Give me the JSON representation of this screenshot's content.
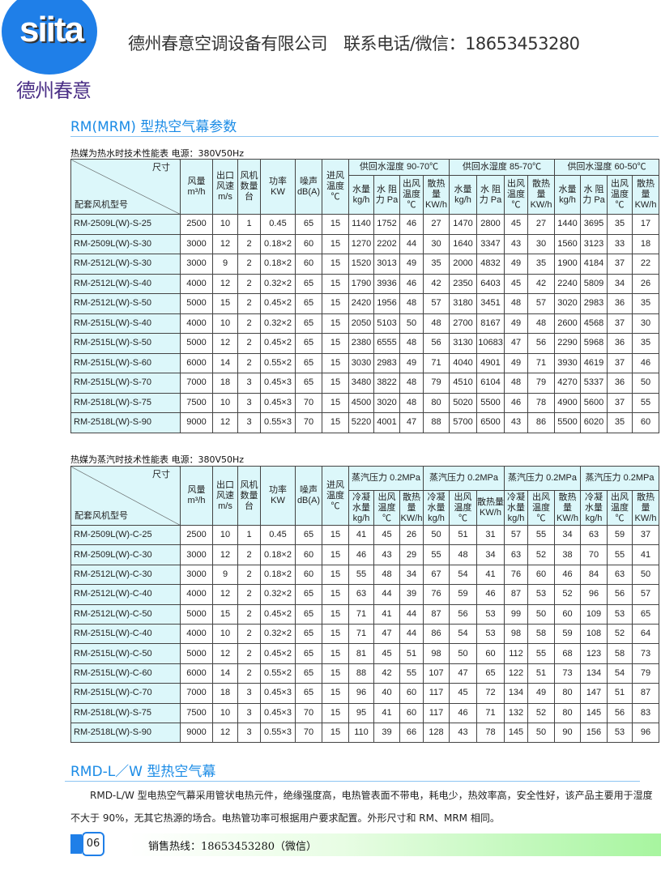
{
  "header": {
    "logo_text": "siita",
    "logo_cn": "德州春意",
    "company": "德州春意空调设备有限公司",
    "contact": "联系电话/微信：18653453280"
  },
  "section1": {
    "title": "RM(MRM) 型热空气幕参数"
  },
  "colors": {
    "accent": "#1a8be6",
    "header_bg": "#dcf7fa",
    "logo_blue": "#1f7fe8",
    "logo_purple": "#4b2f86"
  },
  "table1": {
    "caption": "热媒为热水时技术性能表  电源：380V50Hz",
    "corner_top": "尺寸",
    "corner_bottom": "配套风机型号",
    "fixed_headers": [
      "风量 m³/h",
      "出口 风速 m/s",
      "风机 数量 台",
      "功率 KW",
      "噪声 dB(A)",
      "进风 温度 ℃"
    ],
    "groups": [
      "供回水湿度 90-70℃",
      "供回水湿度 85-70℃",
      "供回水湿度 60-50℃"
    ],
    "sub_headers": [
      "水量 kg/h",
      "水 阻力 Pa",
      "出风 温度 ℃",
      "散热 量 KW/h"
    ],
    "rows": [
      [
        "RM-2509L(W)-S-25",
        "2500",
        "10",
        "1",
        "0.45",
        "65",
        "15",
        "1140",
        "1752",
        "46",
        "27",
        "1470",
        "2800",
        "45",
        "27",
        "1440",
        "3695",
        "35",
        "17"
      ],
      [
        "RM-2509L(W)-S-30",
        "3000",
        "12",
        "2",
        "0.18×2",
        "60",
        "15",
        "1270",
        "2202",
        "44",
        "30",
        "1640",
        "3347",
        "43",
        "30",
        "1560",
        "3123",
        "33",
        "18"
      ],
      [
        "RM-2512L(W)-S-30",
        "3000",
        "9",
        "2",
        "0.18×2",
        "60",
        "15",
        "1520",
        "3013",
        "49",
        "35",
        "2000",
        "4832",
        "49",
        "35",
        "1900",
        "4184",
        "37",
        "22"
      ],
      [
        "RM-2512L(W)-S-40",
        "4000",
        "12",
        "2",
        "0.32×2",
        "65",
        "15",
        "1790",
        "3936",
        "46",
        "42",
        "2350",
        "6403",
        "45",
        "42",
        "2240",
        "5809",
        "34",
        "26"
      ],
      [
        "RM-2512L(W)-S-50",
        "5000",
        "15",
        "2",
        "0.45×2",
        "65",
        "15",
        "2420",
        "1956",
        "48",
        "57",
        "3180",
        "3451",
        "48",
        "57",
        "3020",
        "2983",
        "36",
        "35"
      ],
      [
        "RM-2515L(W)-S-40",
        "4000",
        "10",
        "2",
        "0.32×2",
        "65",
        "15",
        "2050",
        "5103",
        "50",
        "48",
        "2700",
        "8167",
        "49",
        "48",
        "2600",
        "4568",
        "37",
        "30"
      ],
      [
        "RM-2515L(W)-S-50",
        "5000",
        "12",
        "2",
        "0.45×2",
        "65",
        "15",
        "2380",
        "6555",
        "48",
        "56",
        "3130",
        "10683",
        "47",
        "56",
        "2290",
        "5968",
        "36",
        "35"
      ],
      [
        "RM-2515L(W)-S-60",
        "6000",
        "14",
        "2",
        "0.55×2",
        "65",
        "15",
        "3030",
        "2983",
        "49",
        "71",
        "4040",
        "4901",
        "49",
        "71",
        "3930",
        "4619",
        "37",
        "46"
      ],
      [
        "RM-2515L(W)-S-70",
        "7000",
        "18",
        "3",
        "0.45×3",
        "65",
        "15",
        "3480",
        "3822",
        "48",
        "79",
        "4510",
        "6104",
        "48",
        "79",
        "4270",
        "5337",
        "36",
        "50"
      ],
      [
        "RM-2518L(W)-S-75",
        "7500",
        "10",
        "3",
        "0.45×3",
        "70",
        "15",
        "4500",
        "3020",
        "48",
        "80",
        "5020",
        "5500",
        "46",
        "78",
        "4900",
        "5600",
        "37",
        "55"
      ],
      [
        "RM-2518L(W)-S-90",
        "9000",
        "12",
        "3",
        "0.55×3",
        "70",
        "15",
        "5220",
        "4001",
        "47",
        "88",
        "5700",
        "6500",
        "43",
        "86",
        "5500",
        "6020",
        "35",
        "60"
      ]
    ]
  },
  "table2": {
    "caption": "热媒为蒸汽时技术性能表  电源：380V50Hz",
    "corner_top": "尺寸",
    "corner_bottom": "配套风机型号",
    "fixed_headers": [
      "风量 m³/h",
      "出口 风速 m/s",
      "风机 数量 台",
      "功率 KW",
      "噪声 dB(A)",
      "进风 温度 ℃"
    ],
    "groups": [
      "蒸汽压力 0.2MPa",
      "蒸汽压力 0.2MPa",
      "蒸汽压力 0.2MPa",
      "蒸汽压力 0.2MPa"
    ],
    "sub_headers": [
      "冷凝 水量 kg/h",
      "出风 温度 ℃",
      "散热量 KW/h"
    ],
    "rows": [
      [
        "RM-2509L(W)-C-25",
        "2500",
        "10",
        "1",
        "0.45",
        "65",
        "15",
        "41",
        "45",
        "26",
        "50",
        "51",
        "31",
        "57",
        "55",
        "34",
        "63",
        "59",
        "37"
      ],
      [
        "RM-2509L(W)-C-30",
        "3000",
        "12",
        "2",
        "0.18×2",
        "60",
        "15",
        "46",
        "43",
        "29",
        "55",
        "48",
        "34",
        "63",
        "52",
        "38",
        "70",
        "55",
        "41"
      ],
      [
        "RM-2512L(W)-C-30",
        "3000",
        "9",
        "2",
        "0.18×2",
        "60",
        "15",
        "55",
        "48",
        "34",
        "67",
        "54",
        "41",
        "76",
        "60",
        "46",
        "84",
        "63",
        "50"
      ],
      [
        "RM-2512L(W)-C-40",
        "4000",
        "12",
        "2",
        "0.32×2",
        "65",
        "15",
        "63",
        "44",
        "39",
        "76",
        "59",
        "46",
        "87",
        "53",
        "52",
        "96",
        "56",
        "57"
      ],
      [
        "RM-2512L(W)-C-50",
        "5000",
        "15",
        "2",
        "0.45×2",
        "65",
        "15",
        "71",
        "41",
        "44",
        "87",
        "56",
        "53",
        "99",
        "50",
        "60",
        "109",
        "53",
        "65"
      ],
      [
        "RM-2515L(W)-C-40",
        "4000",
        "10",
        "2",
        "0.32×2",
        "65",
        "15",
        "71",
        "47",
        "44",
        "86",
        "54",
        "53",
        "98",
        "58",
        "59",
        "108",
        "52",
        "64"
      ],
      [
        "RM-2515L(W)-C-50",
        "5000",
        "12",
        "2",
        "0.45×2",
        "65",
        "15",
        "81",
        "45",
        "51",
        "98",
        "50",
        "60",
        "112",
        "55",
        "68",
        "123",
        "58",
        "73"
      ],
      [
        "RM-2515L(W)-C-60",
        "6000",
        "14",
        "2",
        "0.55×2",
        "65",
        "15",
        "88",
        "42",
        "55",
        "107",
        "47",
        "65",
        "122",
        "51",
        "73",
        "134",
        "54",
        "79"
      ],
      [
        "RM-2515L(W)-C-70",
        "7000",
        "18",
        "3",
        "0.45×3",
        "65",
        "15",
        "96",
        "40",
        "60",
        "117",
        "45",
        "72",
        "134",
        "49",
        "80",
        "147",
        "51",
        "87"
      ],
      [
        "RM-2518L(W)-S-75",
        "7500",
        "10",
        "3",
        "0.45×3",
        "70",
        "15",
        "95",
        "41",
        "60",
        "117",
        "46",
        "71",
        "132",
        "52",
        "80",
        "145",
        "56",
        "83"
      ],
      [
        "RM-2518L(W)-S-90",
        "9000",
        "12",
        "3",
        "0.55×3",
        "70",
        "15",
        "110",
        "39",
        "66",
        "128",
        "43",
        "78",
        "145",
        "50",
        "90",
        "156",
        "53",
        "96"
      ]
    ]
  },
  "section2": {
    "title": "RMD-L／W 型热空气幕",
    "body": "RMD-L/W 型电热空气幕采用管状电热元件，绝缘强度高，电热管表面不带电，耗电少，热效率高，安全性好，该产品主要用于湿度不大于 90%，无其它热源的场合。电热管功率可根据用户要求配置。外形尺寸和 RM、MRM 相同。"
  },
  "footer": {
    "page": "06",
    "hotline": "销售热线：18653453280（微信）"
  }
}
